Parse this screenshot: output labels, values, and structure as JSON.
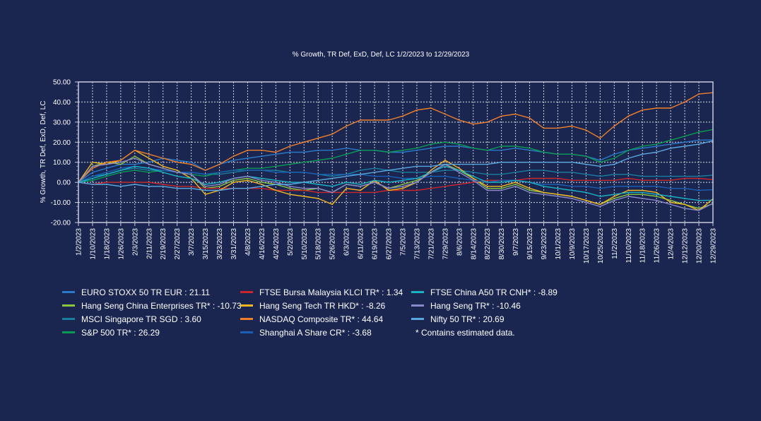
{
  "chart_data": {
    "type": "line",
    "title": "% Growth, TR Def, ExD, Def, LC 1/2/2023 to 12/29/2023",
    "xlabel": "",
    "ylabel": "% Growth, TR Def, ExD, Def, LC",
    "ylim": [
      -20,
      50
    ],
    "yticks": [
      "50.00",
      "40.00",
      "30.00",
      "20.00",
      "10.00",
      "0.00",
      "-10.00",
      "-20.00"
    ],
    "ytick_values": [
      50,
      40,
      30,
      20,
      10,
      0,
      -10,
      -20
    ],
    "grid": true,
    "legend_position": "bottom",
    "x": [
      "1/2/2023",
      "1/10/2023",
      "1/18/2023",
      "1/26/2023",
      "2/3/2023",
      "2/11/2023",
      "2/19/2023",
      "2/27/2023",
      "3/7/2023",
      "3/15/2023",
      "3/23/2023",
      "3/31/2023",
      "4/8/2023",
      "4/16/2023",
      "4/24/2023",
      "5/2/2023",
      "5/10/2023",
      "5/18/2023",
      "5/26/2023",
      "6/3/2023",
      "6/11/2023",
      "6/19/2023",
      "6/27/2023",
      "7/5/2023",
      "7/13/2023",
      "7/21/2023",
      "7/29/2023",
      "8/6/2023",
      "8/14/2023",
      "8/22/2023",
      "8/30/2023",
      "9/7/2023",
      "9/15/2023",
      "9/23/2023",
      "10/1/2023",
      "10/9/2023",
      "10/17/2023",
      "10/25/2023",
      "11/2/2023",
      "11/10/2023",
      "11/18/2023",
      "11/26/2023",
      "12/4/2023",
      "12/12/2023",
      "12/20/2023",
      "12/29/2023"
    ],
    "series": [
      {
        "name": "EURO STOXX 50 TR EUR",
        "legend_value": "21.11",
        "color": "#2a78c8",
        "values": [
          0,
          5,
          7,
          9,
          9,
          10,
          12,
          11,
          10,
          6,
          9,
          11,
          12,
          13,
          14,
          15,
          15,
          16,
          16,
          17,
          16,
          16,
          15,
          15,
          16,
          17,
          18,
          18,
          17,
          16,
          16,
          17,
          16,
          15,
          14,
          14,
          13,
          11,
          14,
          16,
          17,
          18,
          19,
          20,
          21,
          21.11
        ]
      },
      {
        "name": "Hang Seng China Enterprises TR*",
        "legend_value": "-10.73",
        "color": "#8cc63f",
        "values": [
          0,
          8,
          10,
          9,
          13,
          9,
          7,
          5,
          4,
          -3,
          -2,
          1,
          2,
          0,
          -1,
          -3,
          -4,
          -3,
          -5,
          -1,
          -2,
          0,
          -3,
          -1,
          1,
          5,
          9,
          6,
          2,
          -3,
          -3,
          -1,
          -4,
          -5,
          -6,
          -7,
          -9,
          -11,
          -8,
          -6,
          -6,
          -7,
          -9,
          -11,
          -13,
          -10.73
        ]
      },
      {
        "name": "MSCI Singapore TR SGD",
        "legend_value": "3.60",
        "color": "#1a7ea0",
        "values": [
          0,
          3,
          4,
          6,
          7,
          6,
          6,
          5,
          5,
          4,
          4,
          5,
          6,
          6,
          6,
          5,
          5,
          4,
          3,
          4,
          6,
          7,
          6,
          5,
          5,
          5,
          6,
          6,
          5,
          4,
          4,
          5,
          6,
          6,
          5,
          5,
          4,
          3,
          4,
          4,
          3,
          3,
          3,
          3,
          3,
          3.6
        ]
      },
      {
        "name": "S&P 500 TR*",
        "legend_value": "26.29",
        "color": "#0a9a55",
        "values": [
          0,
          1,
          3,
          5,
          6,
          5,
          6,
          5,
          4,
          3,
          5,
          6,
          7,
          7,
          8,
          9,
          10,
          11,
          12,
          14,
          16,
          16,
          15,
          16,
          17,
          19,
          20,
          19,
          17,
          16,
          18,
          18,
          17,
          15,
          14,
          14,
          13,
          10,
          12,
          16,
          18,
          19,
          21,
          23,
          25,
          26.29
        ]
      },
      {
        "name": "FTSE Bursa Malaysia KLCI TR*",
        "legend_value": "1.34",
        "color": "#c8262b",
        "values": [
          0,
          -1,
          0,
          0,
          0,
          0,
          -1,
          -2,
          -2,
          -3,
          -3,
          -3,
          -3,
          -3,
          -4,
          -4,
          -4,
          -5,
          -5,
          -5,
          -5,
          -5,
          -4,
          -4,
          -4,
          -3,
          -2,
          -1,
          0,
          1,
          1,
          1,
          2,
          2,
          2,
          1,
          1,
          1,
          1,
          2,
          1,
          1,
          1,
          2,
          2,
          1.34
        ]
      },
      {
        "name": "Hang Seng Tech TR HKD*",
        "legend_value": "-8.26",
        "color": "#f5b820",
        "values": [
          0,
          10,
          9,
          11,
          16,
          12,
          8,
          6,
          2,
          -6,
          -4,
          0,
          1,
          -1,
          -4,
          -6,
          -7,
          -8,
          -11,
          -3,
          -4,
          1,
          -4,
          -3,
          0,
          6,
          11,
          7,
          2,
          -2,
          -2,
          0,
          -3,
          -5,
          -6,
          -7,
          -9,
          -11,
          -7,
          -4,
          -4,
          -5,
          -10,
          -11,
          -14,
          -8.26
        ]
      },
      {
        "name": "NASDAQ Composite TR*",
        "legend_value": "44.64",
        "color": "#f07f2a",
        "values": [
          0,
          7,
          10,
          11,
          16,
          14,
          12,
          10,
          9,
          6,
          9,
          13,
          16,
          16,
          15,
          18,
          20,
          22,
          24,
          28,
          31,
          31,
          31,
          33,
          36,
          37,
          34,
          31,
          29,
          30,
          33,
          34,
          32,
          27,
          27,
          28,
          26,
          22,
          28,
          33,
          36,
          37,
          37,
          40,
          44,
          44.64
        ]
      },
      {
        "name": "Shanghai A Share CR*",
        "legend_value": "-3.68",
        "color": "#1a5fb4",
        "values": [
          0,
          3,
          5,
          7,
          8,
          7,
          6,
          5,
          5,
          4,
          5,
          6,
          6,
          6,
          5,
          5,
          5,
          4,
          4,
          4,
          4,
          3,
          3,
          2,
          2,
          3,
          3,
          2,
          1,
          0,
          1,
          1,
          0,
          -1,
          -1,
          -2,
          -2,
          -3,
          -2,
          -2,
          -2,
          -2,
          -3,
          -3,
          -4,
          -3.68
        ]
      },
      {
        "name": "FTSE China A50 TR CNH*",
        "legend_value": "-8.89",
        "color": "#1bb3c4",
        "values": [
          0,
          2,
          4,
          6,
          8,
          7,
          5,
          3,
          2,
          -1,
          0,
          2,
          3,
          2,
          1,
          0,
          0,
          -1,
          -2,
          0,
          -1,
          1,
          0,
          1,
          2,
          5,
          8,
          6,
          3,
          0,
          0,
          1,
          0,
          -2,
          -3,
          -4,
          -5,
          -7,
          -6,
          -5,
          -5,
          -6,
          -7,
          -8,
          -9,
          -8.89
        ]
      },
      {
        "name": "Hang Seng TR*",
        "legend_value": "-10.46",
        "color": "#8a88c8",
        "values": [
          0,
          8,
          9,
          10,
          12,
          9,
          7,
          5,
          4,
          -2,
          -1,
          2,
          3,
          1,
          0,
          -2,
          -3,
          -3,
          -5,
          -1,
          -2,
          0,
          -3,
          -2,
          0,
          5,
          9,
          5,
          1,
          -4,
          -4,
          -2,
          -5,
          -6,
          -7,
          -8,
          -10,
          -12,
          -9,
          -7,
          -8,
          -9,
          -11,
          -13,
          -14,
          -10.46
        ]
      },
      {
        "name": "Nifty 50 TR*",
        "legend_value": "20.69",
        "color": "#5aa8e0",
        "values": [
          0,
          -1,
          -1,
          -2,
          -1,
          -2,
          -2,
          -3,
          -3,
          -4,
          -4,
          -3,
          -3,
          -2,
          -1,
          -1,
          0,
          1,
          2,
          3,
          4,
          5,
          6,
          7,
          8,
          8,
          9,
          9,
          9,
          9,
          10,
          10,
          10,
          10,
          10,
          10,
          9,
          8,
          9,
          12,
          14,
          15,
          17,
          18,
          19,
          20.69
        ]
      }
    ],
    "note": "* Contains estimated data."
  }
}
